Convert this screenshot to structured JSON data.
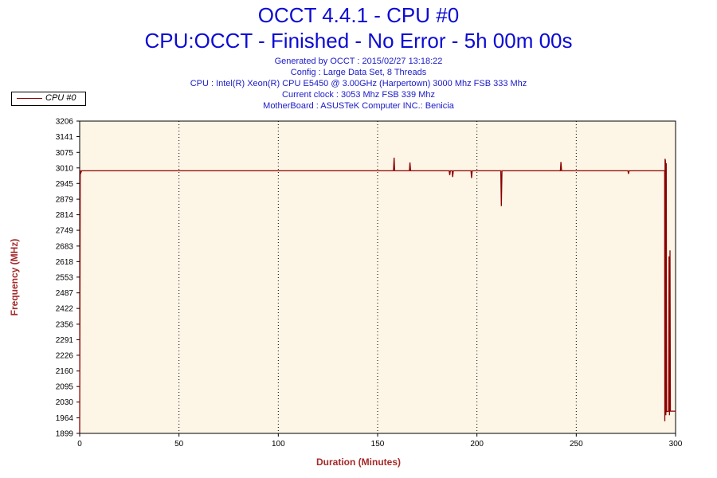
{
  "header": {
    "title": "OCCT 4.4.1 - CPU #0",
    "subtitle": "CPU:OCCT - Finished - No Error - 5h 00m 00s",
    "info_lines": [
      "Generated by OCCT : 2015/02/27 13:18:22",
      "Config : Large Data Set, 8 Threads",
      "CPU : Intel(R) Xeon(R) CPU E5450 @ 3.00GHz (Harpertown) 3000 Mhz FSB 333 Mhz",
      "Current clock : 3053 Mhz FSB 339 Mhz",
      "MotherBoard : ASUSTeK Computer INC.: Benicia"
    ]
  },
  "colors": {
    "title": "#0b0bd4",
    "series": "#8b0000",
    "axis_label": "#a52a2a",
    "plot_bg": "#fdf5e6"
  },
  "chart_data": {
    "type": "line",
    "title": "OCCT 4.4.1 - CPU #0",
    "xlabel": "Duration (Minutes)",
    "ylabel": "Frequency (MHz)",
    "xlim": [
      0,
      300
    ],
    "ylim": [
      1899,
      3206
    ],
    "x_ticks": [
      0,
      50,
      100,
      150,
      200,
      250,
      300
    ],
    "y_ticks": [
      1899,
      1964,
      2030,
      2095,
      2160,
      2226,
      2291,
      2356,
      2422,
      2487,
      2553,
      2618,
      2683,
      2749,
      2814,
      2879,
      2945,
      3010,
      3075,
      3141,
      3206
    ],
    "grid": true,
    "legend_position": "top-left",
    "series": [
      {
        "name": "CPU #0",
        "points": [
          [
            0,
            1900
          ],
          [
            0.3,
            3000
          ],
          [
            0.6,
            2990
          ],
          [
            1,
            2998
          ],
          [
            158,
            2998
          ],
          [
            158.3,
            3053
          ],
          [
            158.6,
            2998
          ],
          [
            166,
            2998
          ],
          [
            166.3,
            3033
          ],
          [
            166.6,
            2998
          ],
          [
            186,
            2998
          ],
          [
            186.3,
            2980
          ],
          [
            186.6,
            2998
          ],
          [
            187.5,
            2998
          ],
          [
            187.8,
            2972
          ],
          [
            188.1,
            2998
          ],
          [
            197,
            2998
          ],
          [
            197.3,
            2968
          ],
          [
            197.6,
            2998
          ],
          [
            212,
            2998
          ],
          [
            212.3,
            2850
          ],
          [
            212.6,
            2998
          ],
          [
            242,
            2998
          ],
          [
            242.3,
            3035
          ],
          [
            242.6,
            2998
          ],
          [
            276,
            2998
          ],
          [
            276.3,
            2985
          ],
          [
            276.6,
            2998
          ],
          [
            294.5,
            2998
          ],
          [
            294.6,
            1950
          ],
          [
            294.7,
            3048
          ],
          [
            294.9,
            3040
          ],
          [
            295.1,
            1975
          ],
          [
            295.3,
            3030
          ],
          [
            295.5,
            1990
          ],
          [
            296.5,
            1992
          ],
          [
            296.7,
            2640
          ],
          [
            296.9,
            1975
          ],
          [
            297.2,
            2665
          ],
          [
            297.4,
            1992
          ],
          [
            300,
            1992
          ]
        ]
      }
    ]
  }
}
